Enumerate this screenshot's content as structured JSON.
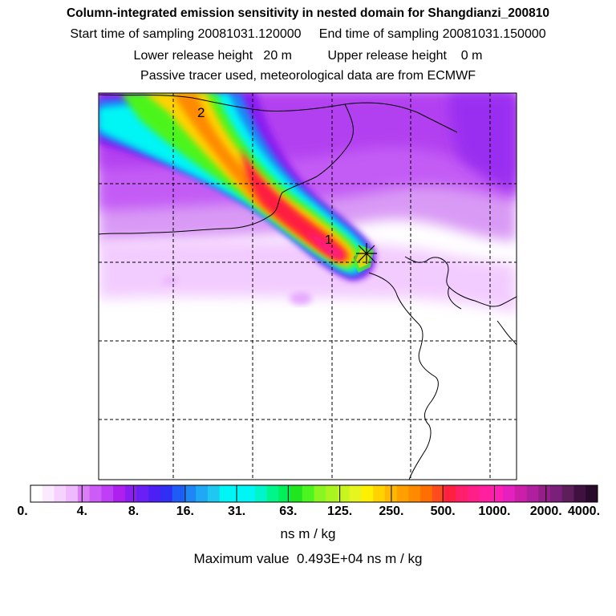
{
  "title": {
    "main": "Column-integrated emission sensitivity in nested domain for Shangdianzi_200810",
    "sampling": "Start time of sampling 20081031.120000     End time of sampling 20081031.150000",
    "release": "Lower release height   20 m          Upper release height    0 m",
    "tracer": "Passive tracer used, meteorological data are from ECMWF"
  },
  "map": {
    "markers": [
      {
        "label": "1",
        "meaning": "trajectory point"
      },
      {
        "label": "2",
        "meaning": "trajectory point"
      }
    ],
    "receptor_symbol": "star-marker"
  },
  "colorbar": {
    "tick_labels": [
      "0.",
      "4.",
      "8.",
      "16.",
      "31.",
      "63.",
      "125.",
      "250.",
      "500.",
      "1000.",
      "2000.",
      "4000."
    ],
    "colors": [
      "#ffffff",
      "#fbeaff",
      "#f5d2ff",
      "#efb9ff",
      "#d87ff5",
      "#cc5cf5",
      "#bf3ff5",
      "#ae1ff0",
      "#8a1ff0",
      "#6a1ff5",
      "#4c1ff5",
      "#2f2ff5",
      "#1f5cf5",
      "#1f86f5",
      "#1fa9f5",
      "#1fc8f0",
      "#00f5f5",
      "#00f5f5",
      "#00f5f5",
      "#00f5c8",
      "#00f58a",
      "#00f05a",
      "#1fe61f",
      "#4cf51f",
      "#8af51f",
      "#aaf51f",
      "#c8f51f",
      "#e6f51f",
      "#ffef00",
      "#ffd200",
      "#ffba00",
      "#ff9f00",
      "#ff8a00",
      "#ff6f00",
      "#ff4c1f",
      "#ff1f3f",
      "#ff1f6a",
      "#ff1f86",
      "#ff1f9f",
      "#ff1fb4",
      "#e61fbf",
      "#cc1fa9",
      "#b01f9f",
      "#941f86",
      "#7a1f7a",
      "#5c1f5c",
      "#3f1040",
      "#2a0a2a"
    ],
    "units": "ns m / kg",
    "max_value_text": "Maximum value  0.493E+04 ns m / kg"
  }
}
